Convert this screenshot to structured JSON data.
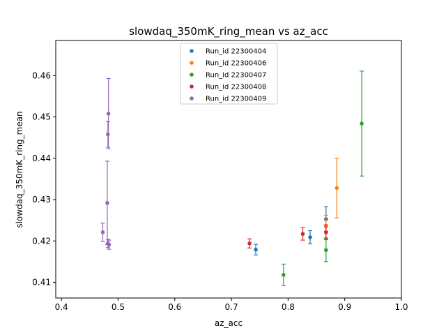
{
  "chart_data": {
    "type": "scatter",
    "title": "slowdaq_350mK_ring_mean vs az_acc",
    "xlabel": "az_acc",
    "ylabel": "slowdaq_350mK_ring_mean",
    "xlim": [
      0.39,
      1.0
    ],
    "ylim": [
      0.4062,
      0.4685
    ],
    "xticks": [
      0.4,
      0.5,
      0.6,
      0.7,
      0.8,
      0.9,
      1.0
    ],
    "xtick_labels": [
      "0.4",
      "0.5",
      "0.6",
      "0.7",
      "0.8",
      "0.9",
      "1.0"
    ],
    "yticks": [
      0.41,
      0.42,
      0.43,
      0.44,
      0.45,
      0.46
    ],
    "ytick_labels": [
      "0.41",
      "0.42",
      "0.43",
      "0.44",
      "0.45",
      "0.46"
    ],
    "legend_position": "top-center",
    "series": [
      {
        "name": "Run_id 22300404",
        "color": "#1f77b4",
        "points": [
          {
            "x": 0.743,
            "y": 0.4179,
            "err": 0.0013
          },
          {
            "x": 0.839,
            "y": 0.4209,
            "err": 0.0016
          },
          {
            "x": 0.867,
            "y": 0.4253,
            "err": 0.003
          }
        ]
      },
      {
        "name": "Run_id 22300406",
        "color": "#ff7f0e",
        "points": [
          {
            "x": 0.867,
            "y": 0.4235,
            "err": 0.0027
          },
          {
            "x": 0.886,
            "y": 0.4328,
            "err": 0.0072
          }
        ]
      },
      {
        "name": "Run_id 22300407",
        "color": "#2ca02c",
        "points": [
          {
            "x": 0.792,
            "y": 0.4118,
            "err": 0.0026
          },
          {
            "x": 0.867,
            "y": 0.4178,
            "err": 0.0028
          },
          {
            "x": 0.93,
            "y": 0.4484,
            "err": 0.0127
          }
        ]
      },
      {
        "name": "Run_id 22300408",
        "color": "#d62728",
        "points": [
          {
            "x": 0.732,
            "y": 0.4194,
            "err": 0.0011
          },
          {
            "x": 0.826,
            "y": 0.4217,
            "err": 0.0015
          },
          {
            "x": 0.867,
            "y": 0.4221,
            "err": 0.0018
          }
        ]
      },
      {
        "name": "Run_id 22300409",
        "color": "#9467bd",
        "points": [
          {
            "x": 0.473,
            "y": 0.4221,
            "err": 0.0022
          },
          {
            "x": 0.481,
            "y": 0.4292,
            "err": 0.0101
          },
          {
            "x": 0.482,
            "y": 0.4458,
            "err": 0.0031
          },
          {
            "x": 0.483,
            "y": 0.4508,
            "err": 0.0085
          },
          {
            "x": 0.482,
            "y": 0.4194,
            "err": 0.001
          },
          {
            "x": 0.484,
            "y": 0.4191,
            "err": 0.0011
          }
        ]
      }
    ]
  }
}
